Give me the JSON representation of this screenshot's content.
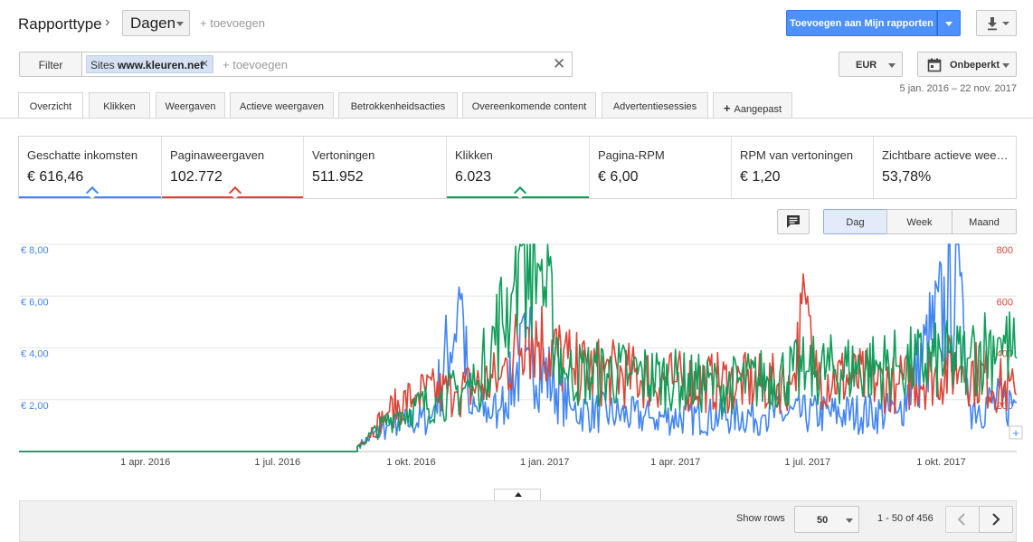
{
  "header": {
    "report_type_label": "Rapporttype",
    "dimension_value": "Dagen",
    "add_dimension": "+ toevoegen",
    "add_to_reports": "Toevoegen aan Mijn rapporten"
  },
  "filter": {
    "button": "Filter",
    "chip_prefix": "Sites",
    "chip_value": "www.kleuren.net",
    "add": "+ toevoegen"
  },
  "currency": "EUR",
  "range": {
    "label": "Onbeperkt",
    "dates": "5 jan. 2016 – 22 nov. 2017"
  },
  "tabs": [
    {
      "label": "Overzicht",
      "active": true
    },
    {
      "label": "Klikken"
    },
    {
      "label": "Weergaven"
    },
    {
      "label": "Actieve weergaven"
    },
    {
      "label": "Betrokkenheidsacties"
    },
    {
      "label": "Overeenkomende content"
    },
    {
      "label": "Advertentiesessies"
    },
    {
      "label": "Aangepast"
    }
  ],
  "cards": [
    {
      "label": "Geschatte inkomsten",
      "value": "€ 616,46",
      "color": "#4285f4"
    },
    {
      "label": "Paginaweergaven",
      "value": "102.772",
      "color": "#db4437"
    },
    {
      "label": "Vertoningen",
      "value": "511.952",
      "color": ""
    },
    {
      "label": "Klikken",
      "value": "6.023",
      "color": "#0f9d58"
    },
    {
      "label": "Pagina-RPM",
      "value": "€ 6,00",
      "color": ""
    },
    {
      "label": "RPM van vertoningen",
      "value": "€ 1,20",
      "color": ""
    },
    {
      "label": "Zichtbare actieve wee…",
      "value": "53,78%",
      "color": ""
    }
  ],
  "period_buttons": [
    {
      "label": "Dag",
      "selected": true
    },
    {
      "label": "Week"
    },
    {
      "label": "Maand"
    }
  ],
  "chart_data": {
    "type": "line",
    "x_tick_labels": [
      "1 apr. 2016",
      "1 jul. 2016",
      "1 okt. 2016",
      "1 jan. 2017",
      "1 apr. 2017",
      "1 jul. 2017",
      "1 okt. 2017"
    ],
    "x_range": [
      "2016-01-05",
      "2017-11-22"
    ],
    "y_left": {
      "ticks": [
        "€ 2,00",
        "€ 4,00",
        "€ 6,00",
        "€ 8,00"
      ],
      "range": [
        0,
        8
      ],
      "color": "#4285f4"
    },
    "y_right": {
      "ticks": [
        "200",
        "400",
        "600",
        "800"
      ],
      "range": [
        0,
        800
      ],
      "color": "#db4437"
    },
    "grid": true,
    "series": [
      {
        "color": "#4285f4",
        "axis": "left",
        "start": "2016-08-25",
        "keypoints": [
          [
            "2016-08-25",
            0.2
          ],
          [
            "2016-09-15",
            1.0
          ],
          [
            "2016-10-15",
            1.3
          ],
          [
            "2016-11-05",
            6.1
          ],
          [
            "2016-11-10",
            1.5
          ],
          [
            "2016-12-01",
            1.6
          ],
          [
            "2016-12-20",
            4.0
          ],
          [
            "2017-01-20",
            1.6
          ],
          [
            "2017-03-15",
            1.3
          ],
          [
            "2017-06-01",
            1.4
          ],
          [
            "2017-09-01",
            1.5
          ],
          [
            "2017-10-15",
            6.9
          ],
          [
            "2017-10-20",
            1.8
          ],
          [
            "2017-11-22",
            1.9
          ]
        ]
      },
      {
        "color": "#db4437",
        "axis": "right",
        "start": "2016-08-25",
        "keypoints": [
          [
            "2016-08-25",
            20
          ],
          [
            "2016-09-15",
            150
          ],
          [
            "2016-10-05",
            220
          ],
          [
            "2016-11-01",
            230
          ],
          [
            "2016-12-01",
            280
          ],
          [
            "2016-12-20",
            480
          ],
          [
            "2017-01-20",
            320
          ],
          [
            "2017-04-01",
            270
          ],
          [
            "2017-06-20",
            260
          ],
          [
            "2017-07-01",
            600
          ],
          [
            "2017-07-05",
            300
          ],
          [
            "2017-09-01",
            260
          ],
          [
            "2017-10-15",
            330
          ],
          [
            "2017-11-22",
            220
          ]
        ]
      },
      {
        "color": "#0f9d58",
        "axis": "right",
        "start": "2016-08-25",
        "keypoints": [
          [
            "2016-08-25",
            20
          ],
          [
            "2016-09-20",
            140
          ],
          [
            "2016-10-20",
            200
          ],
          [
            "2016-11-15",
            260
          ],
          [
            "2016-12-10",
            620
          ],
          [
            "2016-12-15",
            800
          ],
          [
            "2016-12-28",
            720
          ],
          [
            "2017-01-15",
            300
          ],
          [
            "2017-03-01",
            300
          ],
          [
            "2017-05-01",
            250
          ],
          [
            "2017-07-01",
            310
          ],
          [
            "2017-09-01",
            330
          ],
          [
            "2017-10-20",
            360
          ],
          [
            "2017-11-10",
            440
          ],
          [
            "2017-11-22",
            360
          ]
        ]
      }
    ]
  },
  "table": {
    "show_rows_label": "Show rows",
    "rows_value": "50",
    "page_info": "1 - 50 of 456"
  }
}
